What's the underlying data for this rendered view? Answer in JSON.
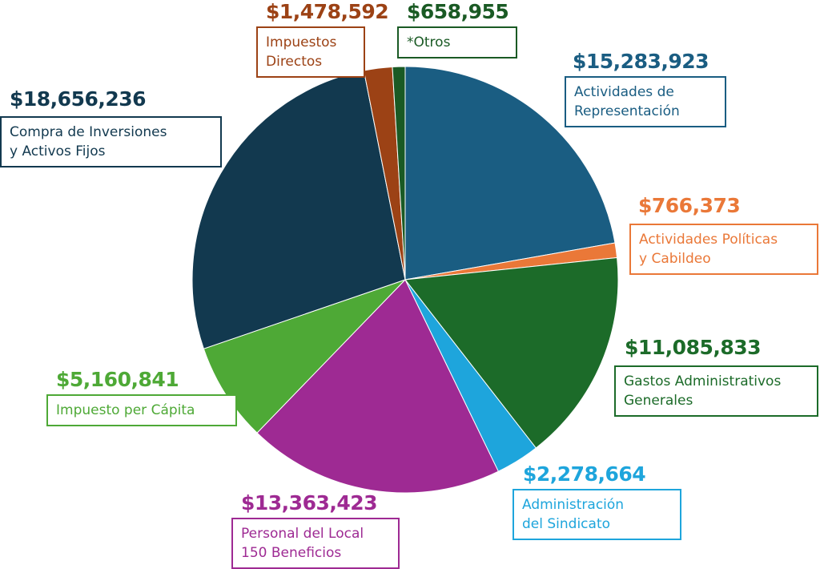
{
  "chart_data": {
    "type": "pie",
    "slices": [
      {
        "amount": "$15,283,923",
        "label": "Actividades de\nRepresentación",
        "value": 15283923,
        "color": "#1a5d82"
      },
      {
        "amount": "$766,373",
        "label": "Actividades Políticas\ny Cabildeo",
        "value": 766373,
        "color": "#ea7838"
      },
      {
        "amount": "$11,085,833",
        "label": "Gastos Administrativos\nGenerales",
        "value": 11085833,
        "color": "#1c6b29"
      },
      {
        "amount": "$2,278,664",
        "label": "Administración\ndel Sindicato",
        "value": 2278664,
        "color": "#1ea5dc"
      },
      {
        "amount": "$13,363,423",
        "label": "Personal del Local\n150 Beneficios",
        "value": 13363423,
        "color": "#9e2a93"
      },
      {
        "amount": "$5,160,841",
        "label": "Impuesto per Cápita",
        "value": 5160841,
        "color": "#4ea936"
      },
      {
        "amount": "$18,656,236",
        "label": "Compra de Inversiones\ny Activos Fijos",
        "value": 18656236,
        "color": "#12394f"
      },
      {
        "amount": "$1,478,592",
        "label": "Impuestos\nDirectos",
        "value": 1478592,
        "color": "#9c4215"
      },
      {
        "amount": "$658,955",
        "label": "*Otros",
        "value": 658955,
        "color": "#1a5a24"
      }
    ],
    "text_colors": [
      "#1a5d82",
      "#ea7838",
      "#1c6b29",
      "#1ea5dc",
      "#9e2a93",
      "#4ea936",
      "#12394f",
      "#9c4215",
      "#1a5a24"
    ]
  }
}
